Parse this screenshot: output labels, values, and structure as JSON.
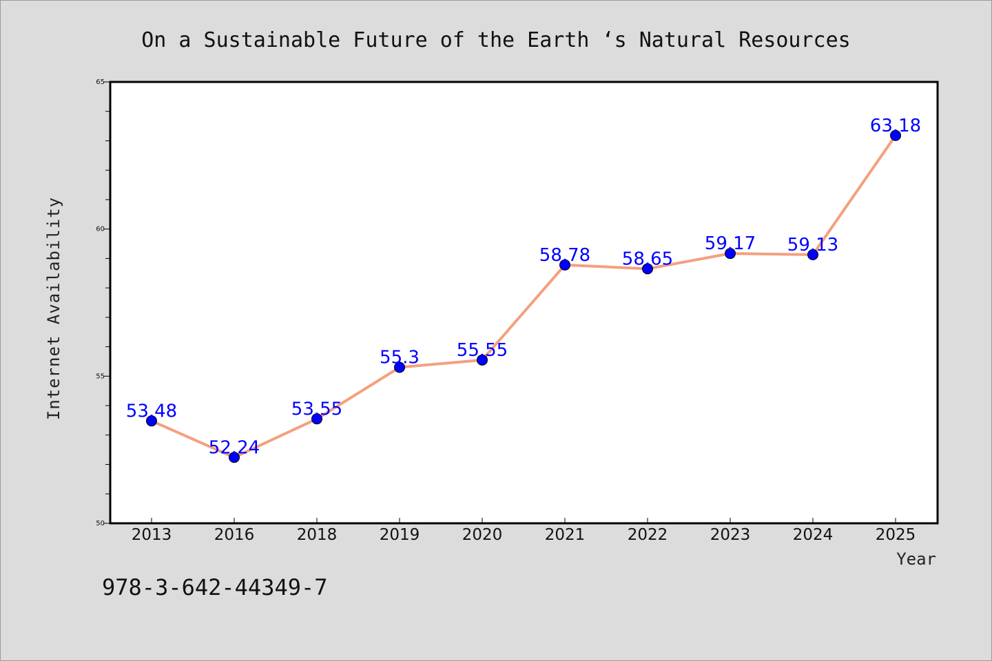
{
  "chart_data": {
    "type": "line",
    "title": "On a Sustainable Future of the Earth ‘s Natural Resources",
    "xlabel": "Year",
    "ylabel": "Internet Availability",
    "categories": [
      "2013",
      "2016",
      "2018",
      "2019",
      "2020",
      "2021",
      "2022",
      "2023",
      "2024",
      "2025"
    ],
    "series": [
      {
        "values": [
          53.48,
          52.24,
          53.55,
          55.3,
          55.55,
          58.78,
          58.65,
          59.17,
          59.13,
          63.18
        ],
        "labels": [
          "53.48",
          "52.24",
          "53.55",
          "55.3",
          "55.55",
          "58.78",
          "58.65",
          "59.17",
          "59.13",
          "63.18"
        ],
        "line_color": "#f4a07f",
        "marker_color": "#0000ff"
      }
    ],
    "ylim": [
      50,
      65
    ],
    "yticks": [
      "50",
      "55",
      "60",
      "65"
    ],
    "grid": false,
    "legend": "none"
  },
  "footer_text": "978-3-642-44349-7",
  "colors": {
    "background": "#dcdcdc",
    "plot_area": "#ffffff",
    "line": "#f4a07f",
    "marker": "#0000ff",
    "data_label": "#0000ff"
  }
}
